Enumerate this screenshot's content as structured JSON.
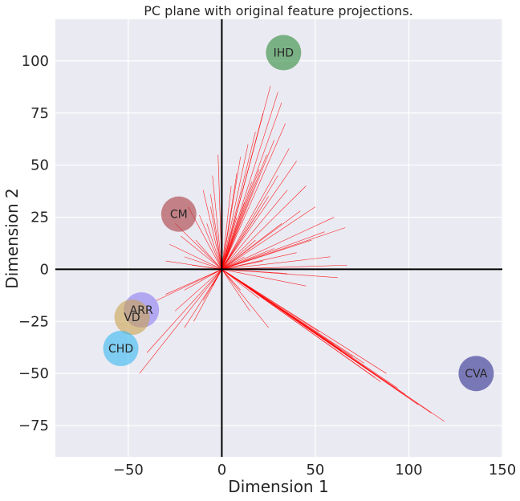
{
  "chart_data": {
    "type": "scatter",
    "title": "PC plane with original feature projections.",
    "xlabel": "Dimension 1",
    "ylabel": "Dimension 2",
    "xlim": [
      -89,
      150
    ],
    "ylim": [
      -90,
      120
    ],
    "xticks": [
      -50,
      0,
      50,
      100,
      150
    ],
    "yticks": [
      -75,
      -50,
      -25,
      0,
      25,
      50,
      75,
      100
    ],
    "xtick_labels": [
      "−50",
      "0",
      "50",
      "100",
      "150"
    ],
    "ytick_labels": [
      "−75",
      "−50",
      "−25",
      "0",
      "25",
      "50",
      "75",
      "100"
    ],
    "grid": true,
    "background": "#eaeaf2",
    "points": [
      {
        "label": "IHD",
        "x": 33,
        "y": 104,
        "color": "#2e8b3a"
      },
      {
        "label": "CM",
        "x": -23,
        "y": 26.5,
        "color": "#a83a3f"
      },
      {
        "label": "ARR",
        "x": -43,
        "y": -19.5,
        "color": "#8b7cf0"
      },
      {
        "label": "VD",
        "x": -48,
        "y": -23,
        "color": "#c9a14f"
      },
      {
        "label": "CHD",
        "x": -54,
        "y": -38,
        "color": "#35b8f0"
      },
      {
        "label": "CVA",
        "x": 136,
        "y": -50,
        "color": "#2d2c8f"
      }
    ],
    "feature_vectors": [
      [
        30,
        85
      ],
      [
        32,
        80
      ],
      [
        26,
        88
      ],
      [
        22,
        75
      ],
      [
        34,
        70
      ],
      [
        18,
        66
      ],
      [
        28,
        62
      ],
      [
        36,
        58
      ],
      [
        14,
        60
      ],
      [
        24,
        55
      ],
      [
        40,
        52
      ],
      [
        10,
        54
      ],
      [
        20,
        48
      ],
      [
        30,
        45
      ],
      [
        8,
        46
      ],
      [
        45,
        40
      ],
      [
        16,
        42
      ],
      [
        35,
        38
      ],
      [
        5,
        40
      ],
      [
        25,
        35
      ],
      [
        50,
        30
      ],
      [
        12,
        32
      ],
      [
        42,
        28
      ],
      [
        60,
        25
      ],
      [
        20,
        28
      ],
      [
        66,
        20
      ],
      [
        32,
        22
      ],
      [
        55,
        18
      ],
      [
        8,
        25
      ],
      [
        48,
        14
      ],
      [
        67,
        2
      ],
      [
        40,
        8
      ],
      [
        28,
        10
      ],
      [
        58,
        6
      ],
      [
        18,
        14
      ],
      [
        62,
        -4
      ],
      [
        22,
        4
      ],
      [
        45,
        -8
      ],
      [
        35,
        -2
      ],
      [
        12,
        6
      ],
      [
        -5,
        45
      ],
      [
        -10,
        38
      ],
      [
        -6,
        30
      ],
      [
        -18,
        30
      ],
      [
        -8,
        22
      ],
      [
        -25,
        22
      ],
      [
        -14,
        14
      ],
      [
        -28,
        12
      ],
      [
        -20,
        6
      ],
      [
        -30,
        4
      ],
      [
        -6,
        36
      ],
      [
        -2,
        55
      ],
      [
        -12,
        26
      ],
      [
        -22,
        16
      ],
      [
        -16,
        2
      ],
      [
        -20,
        -10
      ],
      [
        -30,
        -12
      ],
      [
        -25,
        -20
      ],
      [
        -15,
        -25
      ],
      [
        -35,
        -15
      ],
      [
        -10,
        -15
      ],
      [
        -20,
        -28
      ],
      [
        -40,
        -40
      ],
      [
        -44,
        -50
      ],
      [
        -5,
        -8
      ],
      [
        10,
        -10
      ],
      [
        20,
        -14
      ],
      [
        15,
        -20
      ],
      [
        30,
        -18
      ],
      [
        25,
        -28
      ],
      [
        88,
        -50
      ],
      [
        82,
        -52
      ],
      [
        94,
        -57
      ],
      [
        119,
        -73
      ],
      [
        105,
        -65
      ],
      [
        76,
        -45
      ],
      [
        70,
        -42
      ],
      [
        64,
        -39
      ],
      [
        98,
        -60
      ],
      [
        85,
        -54
      ],
      [
        112,
        -69
      ],
      [
        60,
        -36
      ],
      [
        52,
        -30
      ],
      [
        78,
        -48
      ]
    ]
  }
}
